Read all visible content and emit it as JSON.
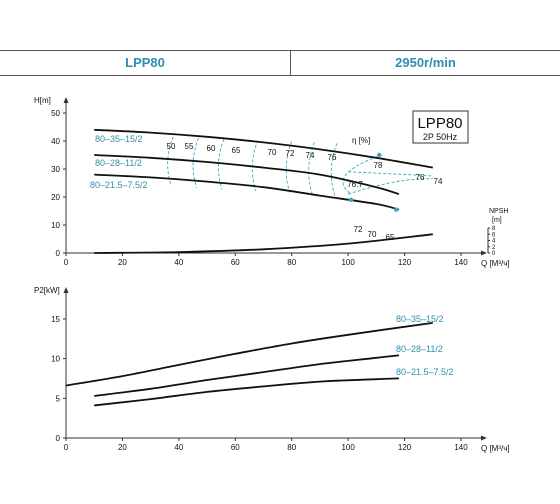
{
  "header": {
    "model": "LPP80",
    "speed": "2950r/min"
  },
  "chart_data": [
    {
      "type": "line",
      "title": "LPP80",
      "subtitle": "2P  50Hz",
      "ylabel": "H[m]",
      "xlabel": "Q [M³/ч]",
      "xlim": [
        0,
        140
      ],
      "ylim": [
        0,
        50
      ],
      "xticks": [
        0,
        20,
        40,
        60,
        80,
        100,
        120,
        140
      ],
      "yticks": [
        0,
        10,
        20,
        30,
        40,
        50
      ],
      "series": [
        {
          "name": "80–35–15/2",
          "x": [
            10,
            30,
            50,
            70,
            90,
            110,
            130
          ],
          "y": [
            44,
            43,
            41.5,
            39.5,
            37,
            34,
            30.5
          ]
        },
        {
          "name": "80–28–11/2",
          "x": [
            10,
            30,
            50,
            70,
            90,
            110,
            118
          ],
          "y": [
            35,
            34,
            32.5,
            30.5,
            28,
            23.5,
            21
          ]
        },
        {
          "name": "80–21.5–7.5/2",
          "x": [
            10,
            30,
            50,
            70,
            90,
            110,
            118
          ],
          "y": [
            28,
            27,
            25.5,
            23.5,
            20.5,
            17.5,
            15.5
          ]
        }
      ],
      "efficiency_label": "η [%]",
      "efficiency_values": [
        "50",
        "55",
        "60",
        "65",
        "70",
        "72",
        "74",
        "76",
        "78",
        "76",
        "74",
        "76.7",
        "72",
        "70",
        "65"
      ],
      "npsh": {
        "label": "NPSH",
        "unit": "[m]",
        "ticks": [
          "0",
          "2",
          "4",
          "6",
          "8"
        ],
        "range": [
          0,
          8
        ],
        "x": [
          10,
          40,
          70,
          100,
          130
        ],
        "y": [
          0,
          0.3,
          1.2,
          3,
          6
        ]
      }
    },
    {
      "type": "line",
      "ylabel": "P2[kW]",
      "xlabel": "Q [M³/ч]",
      "xlim": [
        0,
        140
      ],
      "ylim": [
        0,
        17
      ],
      "xticks": [
        0,
        20,
        40,
        60,
        80,
        100,
        120,
        140
      ],
      "yticks": [
        0,
        5,
        10,
        15
      ],
      "series": [
        {
          "name": "80–35–15/2",
          "x": [
            0,
            20,
            40,
            60,
            80,
            100,
            130
          ],
          "y": [
            6.6,
            7.8,
            9.2,
            10.6,
            11.9,
            13.0,
            14.5
          ]
        },
        {
          "name": "80–28–11/2",
          "x": [
            10,
            30,
            50,
            70,
            90,
            110,
            118
          ],
          "y": [
            5.3,
            6.2,
            7.3,
            8.3,
            9.3,
            10.1,
            10.4
          ]
        },
        {
          "name": "80–21.5–7.5/2",
          "x": [
            10,
            30,
            50,
            70,
            90,
            110,
            118
          ],
          "y": [
            4.1,
            4.9,
            5.8,
            6.5,
            7.1,
            7.4,
            7.5
          ]
        }
      ]
    }
  ]
}
